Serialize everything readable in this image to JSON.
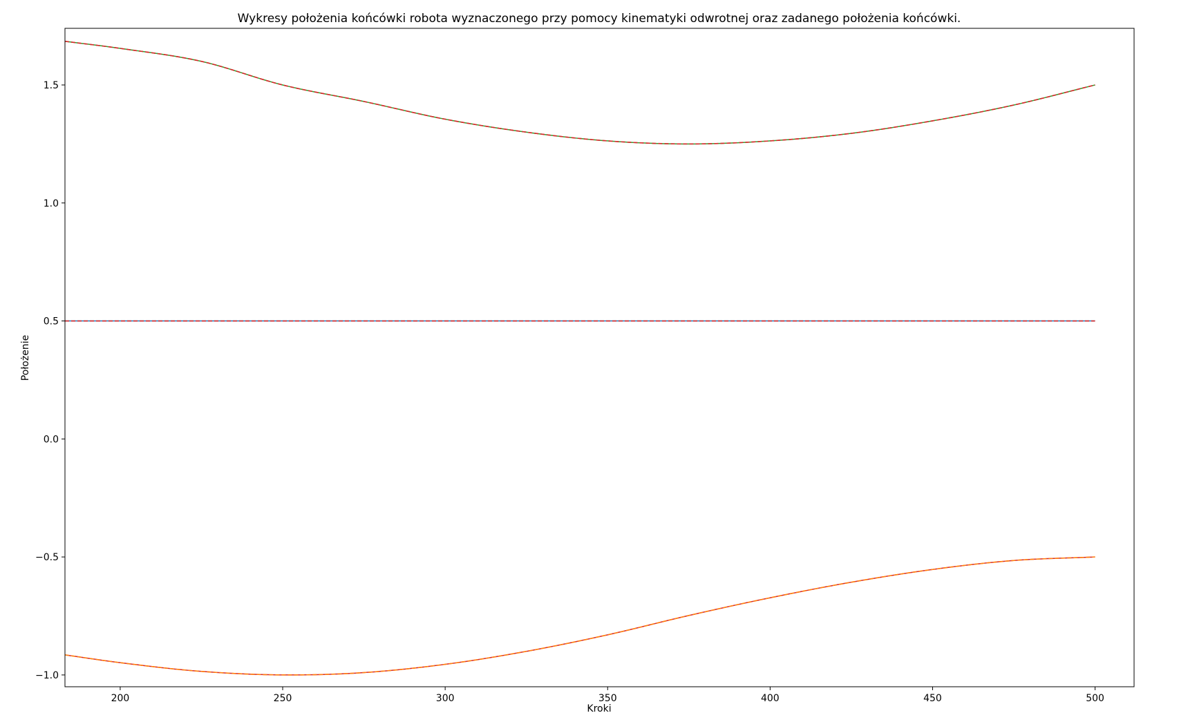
{
  "chart_data": {
    "type": "line",
    "title": "Wykresy położenia końcówki robota wyznaczonego przy pomocy kinematyki odwrotnej oraz zadanego położenia końcówki.",
    "xlabel": "Kroki",
    "ylabel": "Położenie",
    "xlim": [
      183,
      512
    ],
    "ylim": [
      -1.05,
      1.74
    ],
    "xticks": [
      200,
      250,
      300,
      350,
      400,
      450,
      500
    ],
    "xtick_labels": [
      "200",
      "250",
      "300",
      "350",
      "400",
      "450",
      "500"
    ],
    "yticks": [
      -1.0,
      -0.5,
      0.0,
      0.5,
      1.0,
      1.5
    ],
    "ytick_labels": [
      "−1.0",
      "−0.5",
      "0.0",
      "0.5",
      "1.0",
      "1.5"
    ],
    "grid": false,
    "legend": "none",
    "series": [
      {
        "color": "#d62728",
        "style": "solid",
        "points": [
          [
            183,
            -0.915
          ],
          [
            200,
            -0.948
          ],
          [
            225,
            -0.985
          ],
          [
            252,
            -1.0
          ],
          [
            275,
            -0.99
          ],
          [
            300,
            -0.955
          ],
          [
            325,
            -0.9
          ],
          [
            350,
            -0.83
          ],
          [
            375,
            -0.748
          ],
          [
            400,
            -0.673
          ],
          [
            425,
            -0.607
          ],
          [
            450,
            -0.553
          ],
          [
            475,
            -0.515
          ],
          [
            500,
            -0.5
          ]
        ]
      },
      {
        "color": "#ff7f0e",
        "style": "dashed",
        "points": [
          [
            183,
            -0.915
          ],
          [
            200,
            -0.948
          ],
          [
            225,
            -0.985
          ],
          [
            252,
            -1.0
          ],
          [
            275,
            -0.99
          ],
          [
            300,
            -0.955
          ],
          [
            325,
            -0.9
          ],
          [
            350,
            -0.83
          ],
          [
            375,
            -0.748
          ],
          [
            400,
            -0.673
          ],
          [
            425,
            -0.607
          ],
          [
            450,
            -0.553
          ],
          [
            475,
            -0.515
          ],
          [
            500,
            -0.5
          ]
        ]
      },
      {
        "color": "#1f77b4",
        "style": "solid",
        "points": [
          [
            183,
            0.5
          ],
          [
            500,
            0.5
          ]
        ]
      },
      {
        "color": "#d62728",
        "style": "dashed",
        "points": [
          [
            183,
            0.5
          ],
          [
            500,
            0.5
          ]
        ]
      },
      {
        "color": "#2ca02c",
        "style": "solid",
        "points": [
          [
            183,
            1.685
          ],
          [
            200,
            1.655
          ],
          [
            225,
            1.6
          ],
          [
            250,
            1.5
          ],
          [
            275,
            1.43
          ],
          [
            300,
            1.355
          ],
          [
            325,
            1.3
          ],
          [
            350,
            1.263
          ],
          [
            375,
            1.25
          ],
          [
            400,
            1.263
          ],
          [
            425,
            1.295
          ],
          [
            450,
            1.348
          ],
          [
            475,
            1.415
          ],
          [
            500,
            1.5
          ]
        ]
      },
      {
        "color": "#d62728",
        "style": "dashed",
        "points": [
          [
            183,
            1.685
          ],
          [
            200,
            1.655
          ],
          [
            225,
            1.6
          ],
          [
            250,
            1.5
          ],
          [
            275,
            1.43
          ],
          [
            300,
            1.355
          ],
          [
            325,
            1.3
          ],
          [
            350,
            1.263
          ],
          [
            375,
            1.25
          ],
          [
            400,
            1.263
          ],
          [
            425,
            1.295
          ],
          [
            450,
            1.348
          ],
          [
            475,
            1.415
          ],
          [
            500,
            1.5
          ]
        ]
      }
    ]
  }
}
